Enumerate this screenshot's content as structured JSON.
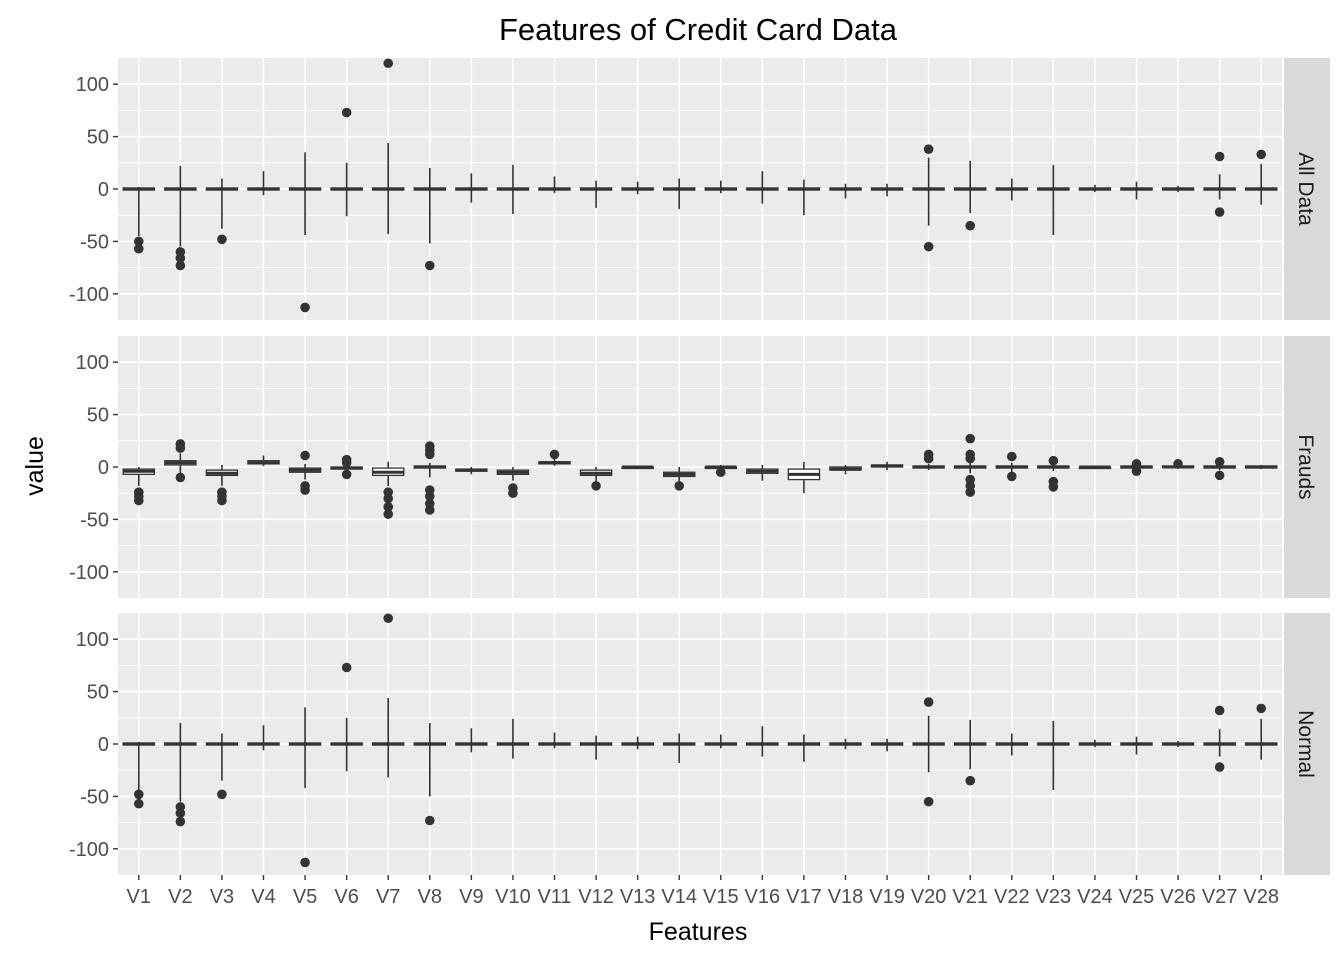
{
  "chart_data": {
    "type": "boxplot",
    "title": "Features of Credit Card Data",
    "xlabel": "Features",
    "ylabel": "value",
    "ylim": [
      -125,
      125
    ],
    "yticks": [
      100,
      50,
      0,
      -50,
      -100
    ],
    "grid": true,
    "legend": "none",
    "colors": {
      "panel_bg": "#ebebeb",
      "grid_major": "#ffffff",
      "strip_bg": "#d9d9d9",
      "box_line": "#333333",
      "box_fill": "#ffffff",
      "tick_text": "#4d4d4d"
    },
    "categories": [
      "V1",
      "V2",
      "V3",
      "V4",
      "V5",
      "V6",
      "V7",
      "V8",
      "V9",
      "V10",
      "V11",
      "V12",
      "V13",
      "V14",
      "V15",
      "V16",
      "V17",
      "V18",
      "V19",
      "V20",
      "V21",
      "V22",
      "V23",
      "V24",
      "V25",
      "V26",
      "V27",
      "V28"
    ],
    "panels": [
      {
        "name": "All Data",
        "boxes": [
          {
            "min": -45,
            "q1": -1,
            "med": 0,
            "q3": 1,
            "max": 2,
            "outliers": [
              -57,
              -50
            ]
          },
          {
            "min": -55,
            "q1": -1,
            "med": 0,
            "q3": 1,
            "max": 22,
            "outliers": [
              -73,
              -66,
              -60
            ]
          },
          {
            "min": -38,
            "q1": -1,
            "med": 0,
            "q3": 1,
            "max": 10,
            "outliers": [
              -48
            ]
          },
          {
            "min": -6,
            "q1": -1,
            "med": 0,
            "q3": 1,
            "max": 17,
            "outliers": []
          },
          {
            "min": -44,
            "q1": -1,
            "med": 0,
            "q3": 1,
            "max": 35,
            "outliers": [
              -113
            ]
          },
          {
            "min": -26,
            "q1": -1,
            "med": 0,
            "q3": 1,
            "max": 25,
            "outliers": [
              73
            ]
          },
          {
            "min": -43,
            "q1": -1,
            "med": 0,
            "q3": 1,
            "max": 44,
            "outliers": [
              120
            ]
          },
          {
            "min": -52,
            "q1": -1,
            "med": 0,
            "q3": 1,
            "max": 20,
            "outliers": [
              -73
            ]
          },
          {
            "min": -13,
            "q1": -1,
            "med": 0,
            "q3": 1,
            "max": 15,
            "outliers": []
          },
          {
            "min": -24,
            "q1": -1,
            "med": 0,
            "q3": 1,
            "max": 23,
            "outliers": []
          },
          {
            "min": -4,
            "q1": -1,
            "med": 0,
            "q3": 1,
            "max": 12,
            "outliers": []
          },
          {
            "min": -18,
            "q1": -1,
            "med": 0,
            "q3": 1,
            "max": 8,
            "outliers": []
          },
          {
            "min": -5,
            "q1": -1,
            "med": 0,
            "q3": 1,
            "max": 7,
            "outliers": []
          },
          {
            "min": -19,
            "q1": -1,
            "med": 0,
            "q3": 1,
            "max": 10,
            "outliers": []
          },
          {
            "min": -4,
            "q1": -1,
            "med": 0,
            "q3": 1,
            "max": 8,
            "outliers": []
          },
          {
            "min": -14,
            "q1": -1,
            "med": 0,
            "q3": 1,
            "max": 17,
            "outliers": []
          },
          {
            "min": -25,
            "q1": -1,
            "med": 0,
            "q3": 1,
            "max": 9,
            "outliers": []
          },
          {
            "min": -9,
            "q1": -1,
            "med": 0,
            "q3": 1,
            "max": 5,
            "outliers": []
          },
          {
            "min": -7,
            "q1": -1,
            "med": 0,
            "q3": 1,
            "max": 5,
            "outliers": []
          },
          {
            "min": -35,
            "q1": -1,
            "med": 0,
            "q3": 1,
            "max": 30,
            "outliers": [
              -55,
              38
            ]
          },
          {
            "min": -23,
            "q1": -1,
            "med": 0,
            "q3": 1,
            "max": 27,
            "outliers": [
              -35
            ]
          },
          {
            "min": -11,
            "q1": -1,
            "med": 0,
            "q3": 1,
            "max": 10,
            "outliers": []
          },
          {
            "min": -44,
            "q1": -1,
            "med": 0,
            "q3": 1,
            "max": 23,
            "outliers": []
          },
          {
            "min": -3,
            "q1": -1,
            "med": 0,
            "q3": 1,
            "max": 4,
            "outliers": []
          },
          {
            "min": -10,
            "q1": -1,
            "med": 0,
            "q3": 1,
            "max": 7,
            "outliers": []
          },
          {
            "min": -3,
            "q1": -1,
            "med": 0,
            "q3": 1,
            "max": 3,
            "outliers": []
          },
          {
            "min": -10,
            "q1": -1,
            "med": 0,
            "q3": 1,
            "max": 14,
            "outliers": [
              -22,
              31
            ]
          },
          {
            "min": -15,
            "q1": -1,
            "med": 0,
            "q3": 1,
            "max": 24,
            "outliers": [
              33
            ]
          }
        ]
      },
      {
        "name": "Frauds",
        "boxes": [
          {
            "min": -18,
            "q1": -7,
            "med": -4,
            "q3": -2,
            "max": 0,
            "outliers": [
              -32,
              -28,
              -24
            ]
          },
          {
            "min": -8,
            "q1": 2,
            "med": 4,
            "q3": 6,
            "max": 13,
            "outliers": [
              -10,
              22,
              18
            ]
          },
          {
            "min": -18,
            "q1": -8,
            "med": -6,
            "q3": -3,
            "max": 2,
            "outliers": [
              -32,
              -28,
              -24
            ]
          },
          {
            "min": 1,
            "q1": 3,
            "med": 4,
            "q3": 6,
            "max": 11,
            "outliers": []
          },
          {
            "min": -12,
            "q1": -5,
            "med": -3,
            "q3": -1,
            "max": 3,
            "outliers": [
              -22,
              -18,
              11
            ]
          },
          {
            "min": -6,
            "q1": -2,
            "med": -1,
            "q3": 0,
            "max": 2,
            "outliers": [
              -7,
              7,
              4
            ]
          },
          {
            "min": -18,
            "q1": -8,
            "med": -5,
            "q3": -1,
            "max": 5,
            "outliers": [
              -45,
              -38,
              -30,
              -24
            ]
          },
          {
            "min": -10,
            "q1": -1,
            "med": 0,
            "q3": 1,
            "max": 4,
            "outliers": [
              -41,
              -35,
              -28,
              -22,
              20,
              16,
              12
            ]
          },
          {
            "min": -7,
            "q1": -4,
            "med": -3,
            "q3": -2,
            "max": 0,
            "outliers": []
          },
          {
            "min": -13,
            "q1": -7,
            "med": -5,
            "q3": -3,
            "max": 0,
            "outliers": [
              -25,
              -20
            ]
          },
          {
            "min": 1,
            "q1": 3,
            "med": 4,
            "q3": 5,
            "max": 8,
            "outliers": [
              12
            ]
          },
          {
            "min": -14,
            "q1": -8,
            "med": -6,
            "q3": -3,
            "max": 0,
            "outliers": [
              -18
            ]
          },
          {
            "min": -2,
            "q1": -1,
            "med": 0,
            "q3": 0,
            "max": 1,
            "outliers": []
          },
          {
            "min": -16,
            "q1": -9,
            "med": -7,
            "q3": -5,
            "max": 0,
            "outliers": [
              -18
            ]
          },
          {
            "min": -3,
            "q1": -1,
            "med": 0,
            "q3": 0,
            "max": 2,
            "outliers": [
              -5
            ]
          },
          {
            "min": -13,
            "q1": -6,
            "med": -4,
            "q3": -2,
            "max": 2,
            "outliers": []
          },
          {
            "min": -25,
            "q1": -12,
            "med": -7,
            "q3": -2,
            "max": 5,
            "outliers": []
          },
          {
            "min": -7,
            "q1": -3,
            "med": -2,
            "q3": 0,
            "max": 2,
            "outliers": []
          },
          {
            "min": -3,
            "q1": 0,
            "med": 1,
            "q3": 2,
            "max": 5,
            "outliers": []
          },
          {
            "min": -3,
            "q1": -1,
            "med": 0,
            "q3": 1,
            "max": 3,
            "outliers": [
              12,
              8
            ]
          },
          {
            "min": -6,
            "q1": -1,
            "med": 0,
            "q3": 1,
            "max": 4,
            "outliers": [
              -24,
              -18,
              -12,
              27,
              12,
              8
            ]
          },
          {
            "min": -5,
            "q1": -1,
            "med": 0,
            "q3": 1,
            "max": 4,
            "outliers": [
              -9,
              10
            ]
          },
          {
            "min": -4,
            "q1": -1,
            "med": 0,
            "q3": 1,
            "max": 3,
            "outliers": [
              -19,
              -14,
              6
            ]
          },
          {
            "min": -2,
            "q1": -1,
            "med": 0,
            "q3": 0,
            "max": 1,
            "outliers": []
          },
          {
            "min": -3,
            "q1": -1,
            "med": 0,
            "q3": 1,
            "max": 2,
            "outliers": [
              -4,
              3
            ]
          },
          {
            "min": -2,
            "q1": 0,
            "med": 0,
            "q3": 1,
            "max": 2,
            "outliers": [
              3
            ]
          },
          {
            "min": -3,
            "q1": -1,
            "med": 0,
            "q3": 1,
            "max": 3,
            "outliers": [
              -8,
              5
            ]
          },
          {
            "min": -2,
            "q1": -1,
            "med": 0,
            "q3": 1,
            "max": 2,
            "outliers": []
          }
        ]
      },
      {
        "name": "Normal",
        "boxes": [
          {
            "min": -45,
            "q1": -1,
            "med": 0,
            "q3": 1,
            "max": 2,
            "outliers": [
              -57,
              -48
            ]
          },
          {
            "min": -55,
            "q1": -1,
            "med": 0,
            "q3": 1,
            "max": 20,
            "outliers": [
              -74,
              -66,
              -60
            ]
          },
          {
            "min": -35,
            "q1": -1,
            "med": 0,
            "q3": 1,
            "max": 10,
            "outliers": [
              -48
            ]
          },
          {
            "min": -6,
            "q1": -1,
            "med": 0,
            "q3": 1,
            "max": 18,
            "outliers": []
          },
          {
            "min": -42,
            "q1": -1,
            "med": 0,
            "q3": 1,
            "max": 35,
            "outliers": [
              -113
            ]
          },
          {
            "min": -26,
            "q1": -1,
            "med": 0,
            "q3": 1,
            "max": 25,
            "outliers": [
              73
            ]
          },
          {
            "min": -32,
            "q1": -1,
            "med": 0,
            "q3": 1,
            "max": 44,
            "outliers": [
              120
            ]
          },
          {
            "min": -50,
            "q1": -1,
            "med": 0,
            "q3": 1,
            "max": 20,
            "outliers": [
              -73
            ]
          },
          {
            "min": -8,
            "q1": -1,
            "med": 0,
            "q3": 1,
            "max": 15,
            "outliers": []
          },
          {
            "min": -14,
            "q1": -1,
            "med": 0,
            "q3": 1,
            "max": 24,
            "outliers": []
          },
          {
            "min": -4,
            "q1": -1,
            "med": 0,
            "q3": 1,
            "max": 11,
            "outliers": []
          },
          {
            "min": -15,
            "q1": -1,
            "med": 0,
            "q3": 1,
            "max": 8,
            "outliers": []
          },
          {
            "min": -5,
            "q1": -1,
            "med": 0,
            "q3": 1,
            "max": 7,
            "outliers": []
          },
          {
            "min": -18,
            "q1": -1,
            "med": 0,
            "q3": 1,
            "max": 10,
            "outliers": []
          },
          {
            "min": -4,
            "q1": -1,
            "med": 0,
            "q3": 1,
            "max": 9,
            "outliers": []
          },
          {
            "min": -12,
            "q1": -1,
            "med": 0,
            "q3": 1,
            "max": 17,
            "outliers": []
          },
          {
            "min": -17,
            "q1": -1,
            "med": 0,
            "q3": 1,
            "max": 9,
            "outliers": []
          },
          {
            "min": -5,
            "q1": -1,
            "med": 0,
            "q3": 1,
            "max": 5,
            "outliers": []
          },
          {
            "min": -7,
            "q1": -1,
            "med": 0,
            "q3": 1,
            "max": 5,
            "outliers": []
          },
          {
            "min": -27,
            "q1": -1,
            "med": 0,
            "q3": 1,
            "max": 27,
            "outliers": [
              -55,
              40
            ]
          },
          {
            "min": -24,
            "q1": -1,
            "med": 0,
            "q3": 1,
            "max": 23,
            "outliers": [
              -35
            ]
          },
          {
            "min": -11,
            "q1": -1,
            "med": 0,
            "q3": 1,
            "max": 10,
            "outliers": []
          },
          {
            "min": -44,
            "q1": -1,
            "med": 0,
            "q3": 1,
            "max": 22,
            "outliers": []
          },
          {
            "min": -3,
            "q1": -1,
            "med": 0,
            "q3": 1,
            "max": 4,
            "outliers": []
          },
          {
            "min": -10,
            "q1": -1,
            "med": 0,
            "q3": 1,
            "max": 7,
            "outliers": []
          },
          {
            "min": -3,
            "q1": -1,
            "med": 0,
            "q3": 1,
            "max": 3,
            "outliers": []
          },
          {
            "min": -12,
            "q1": -1,
            "med": 0,
            "q3": 1,
            "max": 14,
            "outliers": [
              -22,
              32
            ]
          },
          {
            "min": -15,
            "q1": -1,
            "med": 0,
            "q3": 1,
            "max": 24,
            "outliers": [
              34
            ]
          }
        ]
      }
    ]
  }
}
